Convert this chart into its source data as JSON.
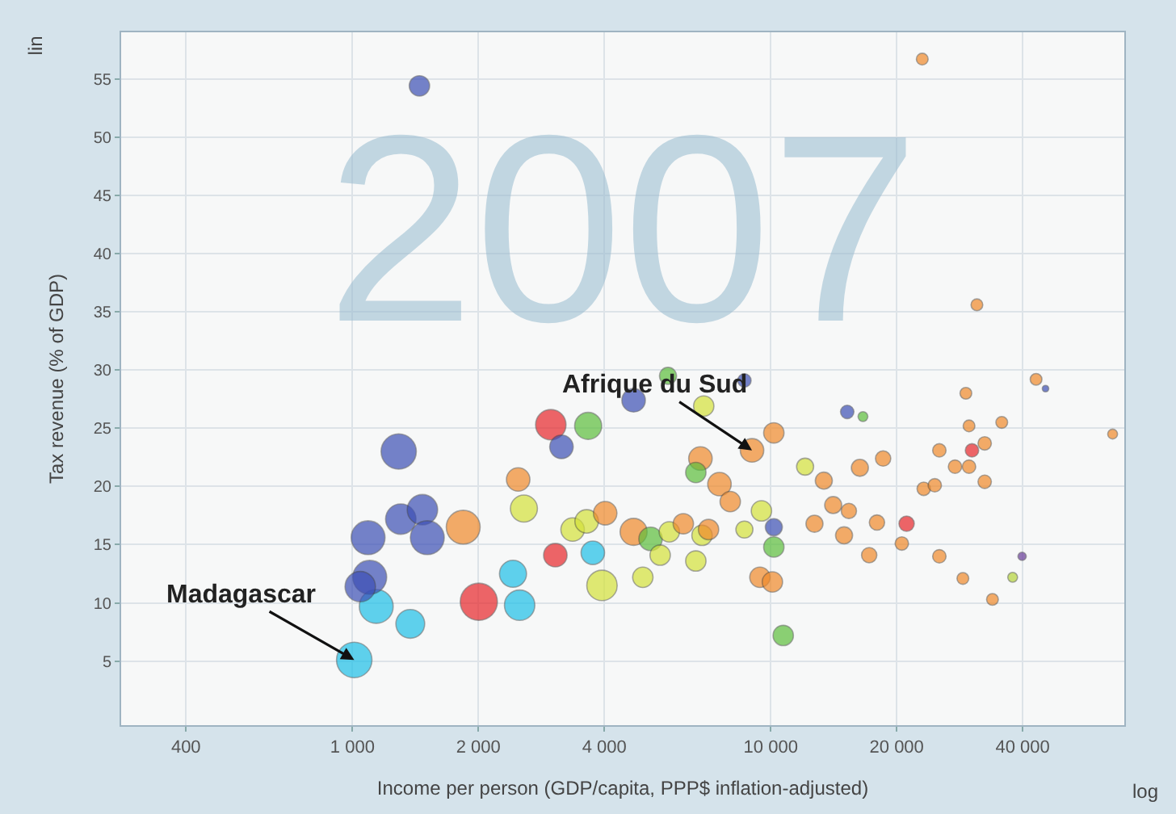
{
  "chart_data": {
    "type": "bubble",
    "xlabel": "Income per person (GDP/capita, PPP$ inflation-adjusted)",
    "ylabel": "Tax revenue (% of GDP)",
    "log": "x",
    "grid": true,
    "xlim": [
      280,
      70000
    ],
    "xticks": [
      400,
      {
        "value": 1000,
        "label": "1 000"
      },
      {
        "value": 2000,
        "label": "2 000"
      },
      {
        "value": 4000,
        "label": "4 000"
      },
      {
        "value": 10000,
        "label": "10 000"
      },
      {
        "value": 20000,
        "label": "20 000"
      },
      {
        "value": 40000,
        "label": "40 000"
      }
    ],
    "ylim": [
      -0.5,
      59
    ],
    "yticks": [
      5,
      10,
      15,
      20,
      25,
      30,
      35,
      40,
      45,
      50,
      55
    ],
    "x": [
      1010,
      1140,
      1375,
      1100,
      1044,
      1090,
      1305,
      1470,
      1510,
      1290,
      1840,
      2005,
      2420,
      2510,
      2980,
      3660,
      3160,
      2490,
      2570,
      3055,
      3755,
      3950,
      3360,
      3630,
      4020,
      4700,
      5680,
      6915,
      8650,
      9020,
      10170,
      15230,
      16610,
      6790,
      6620,
      12080,
      7540,
      8000,
      13390,
      16330,
      18560,
      14100,
      15370,
      9500,
      10170,
      10170,
      12720,
      14970,
      17940,
      21120,
      20570,
      17190,
      25290,
      9420,
      10090,
      10710,
      4700,
      5160,
      5440,
      5720,
      6180,
      6850,
      7100,
      6620,
      4945,
      8650,
      31100,
      23020,
      43070,
      45370,
      29270,
      29780,
      35660,
      65640,
      25290,
      32460,
      30270,
      27570,
      29780,
      23210,
      24660,
      32460,
      39880,
      37860,
      28790,
      33880,
      1446
    ],
    "values": [
      5.1,
      9.7,
      8.2,
      12.2,
      11.4,
      15.6,
      17.2,
      18.0,
      15.6,
      23.0,
      16.5,
      10.1,
      12.5,
      9.8,
      25.3,
      25.2,
      23.4,
      20.6,
      18.1,
      14.1,
      14.3,
      11.5,
      16.3,
      17.0,
      17.7,
      27.4,
      29.5,
      26.9,
      29.1,
      23.1,
      24.6,
      26.4,
      26.0,
      22.4,
      21.2,
      21.7,
      20.2,
      18.7,
      20.5,
      21.6,
      22.4,
      18.4,
      17.9,
      17.9,
      16.5,
      14.8,
      16.8,
      15.8,
      16.9,
      16.8,
      15.1,
      14.1,
      14.0,
      12.2,
      11.8,
      7.2,
      16.1,
      15.5,
      14.1,
      16.1,
      16.8,
      15.8,
      16.3,
      13.6,
      12.2,
      16.3,
      35.6,
      56.7,
      29.2,
      28.4,
      28.0,
      25.2,
      25.5,
      24.5,
      23.1,
      23.7,
      23.1,
      21.7,
      21.7,
      19.8,
      20.1,
      20.4,
      14.0,
      12.2,
      12.1,
      10.3,
      54.4
    ],
    "sizes": [
      0.91,
      0.83,
      0.6,
      0.83,
      0.67,
      0.83,
      0.67,
      0.67,
      0.83,
      0.9,
      0.83,
      1,
      0.53,
      0.67,
      0.67,
      0.53,
      0.4,
      0.4,
      0.53,
      0.4,
      0.4,
      0.67,
      0.4,
      0.4,
      0.4,
      0.4,
      0.21,
      0.3,
      0.13,
      0.4,
      0.3,
      0.13,
      0.07,
      0.4,
      0.3,
      0.21,
      0.4,
      0.3,
      0.21,
      0.21,
      0.17,
      0.21,
      0.17,
      0.3,
      0.21,
      0.3,
      0.21,
      0.21,
      0.17,
      0.17,
      0.13,
      0.17,
      0.13,
      0.3,
      0.3,
      0.3,
      0.53,
      0.4,
      0.3,
      0.3,
      0.3,
      0.3,
      0.3,
      0.3,
      0.3,
      0.21,
      0.1,
      0.1,
      0.1,
      0.03,
      0.1,
      0.1,
      0.1,
      0.07,
      0.13,
      0.13,
      0.13,
      0.13,
      0.13,
      0.13,
      0.13,
      0.13,
      0.05,
      0.07,
      0.1,
      0.1,
      0.3
    ],
    "colors": [
      "#1ec0e8",
      "#1ec0e8",
      "#1ec0e8",
      "#3c4fb5",
      "#3c4fb5",
      "#3c4fb5",
      "#3c4fb5",
      "#3c4fb5",
      "#3c4fb5",
      "#3c4fb5",
      "#f08a2a",
      "#e8262a",
      "#1ec0e8",
      "#1ec0e8",
      "#e8262a",
      "#5cbf3c",
      "#3c4fb5",
      "#f08a2a",
      "#d4e23a",
      "#e8262a",
      "#1ec0e8",
      "#d4e23a",
      "#d4e23a",
      "#d4e23a",
      "#f08a2a",
      "#3c4fb5",
      "#5cbf3c",
      "#d4e23a",
      "#3c4fb5",
      "#f08a2a",
      "#f08a2a",
      "#3c4fb5",
      "#5cbf3c",
      "#f08a2a",
      "#5cbf3c",
      "#d4e23a",
      "#f08a2a",
      "#f08a2a",
      "#f08a2a",
      "#f08a2a",
      "#f08a2a",
      "#f08a2a",
      "#f08a2a",
      "#d4e23a",
      "#3c4fb5",
      "#5cbf3c",
      "#f08a2a",
      "#f08a2a",
      "#f08a2a",
      "#e8262a",
      "#f08a2a",
      "#f08a2a",
      "#f08a2a",
      "#f08a2a",
      "#f08a2a",
      "#5cbf3c",
      "#f08a2a",
      "#5cbf3c",
      "#d4e23a",
      "#d4e23a",
      "#f08a2a",
      "#d4e23a",
      "#f08a2a",
      "#d4e23a",
      "#d4e23a",
      "#d4e23a",
      "#f08a2a",
      "#f08a2a",
      "#f08a2a",
      "#3c4fb5",
      "#f08a2a",
      "#f08a2a",
      "#f08a2a",
      "#f08a2a",
      "#f08a2a",
      "#f08a2a",
      "#e8262a",
      "#f08a2a",
      "#f08a2a",
      "#f08a2a",
      "#f08a2a",
      "#f08a2a",
      "#6a3d9a",
      "#b5d43a",
      "#f08a2a",
      "#f08a2a",
      "#3c4fb5"
    ],
    "annotations": [
      "2007",
      "lin",
      "log",
      {
        "text": "Madagascar",
        "x": 1010,
        "y": 5.1
      },
      {
        "text": "Afrique du Sud",
        "x": 9020,
        "y": 23.1
      }
    ]
  }
}
